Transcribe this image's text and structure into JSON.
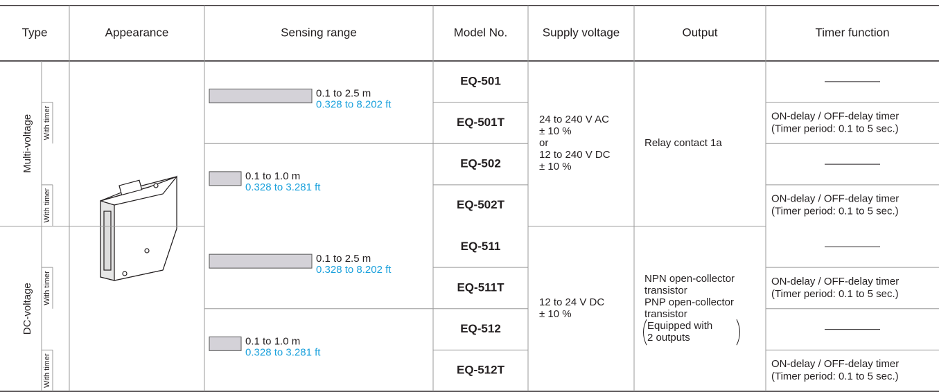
{
  "header": {
    "columns": [
      "Type",
      "Appearance",
      "Sensing range",
      "Model No.",
      "Supply voltage",
      "Output",
      "Timer function"
    ]
  },
  "timer_label": "With timer",
  "timer_text": [
    "ON-delay / OFF-delay timer",
    "(Timer period: 0.1 to 5 sec.)"
  ],
  "groups": [
    {
      "label": "Multi-voltage",
      "supply": [
        "24 to 240 V AC",
        "± 10 %",
        "or",
        "12 to 240 V DC",
        "± 10 %"
      ],
      "output": [
        "Relay contact 1a"
      ],
      "output_note": [],
      "ranges": [
        {
          "metric": "0.1 to 2.5 m",
          "imperial": "0.328 to 8.202 ft",
          "models": [
            "EQ-501",
            "EQ-501T"
          ]
        },
        {
          "metric": "0.1 to 1.0 m",
          "imperial": "0.328 to 3.281 ft",
          "models": [
            "EQ-502",
            "EQ-502T"
          ]
        }
      ]
    },
    {
      "label": "DC-voltage",
      "supply": [
        "12 to 24 V DC",
        "± 10 %"
      ],
      "output": [
        "NPN open-collector",
        "transistor",
        "PNP open-collector",
        "transistor"
      ],
      "output_note": [
        "Equipped with",
        "2 outputs"
      ],
      "ranges": [
        {
          "metric": "0.1 to 2.5 m",
          "imperial": "0.328 to 8.202 ft",
          "models": [
            "EQ-511",
            "EQ-511T"
          ]
        },
        {
          "metric": "0.1 to 1.0 m",
          "imperial": "0.328 to 3.281 ft",
          "models": [
            "EQ-512",
            "EQ-512T"
          ]
        }
      ]
    }
  ]
}
